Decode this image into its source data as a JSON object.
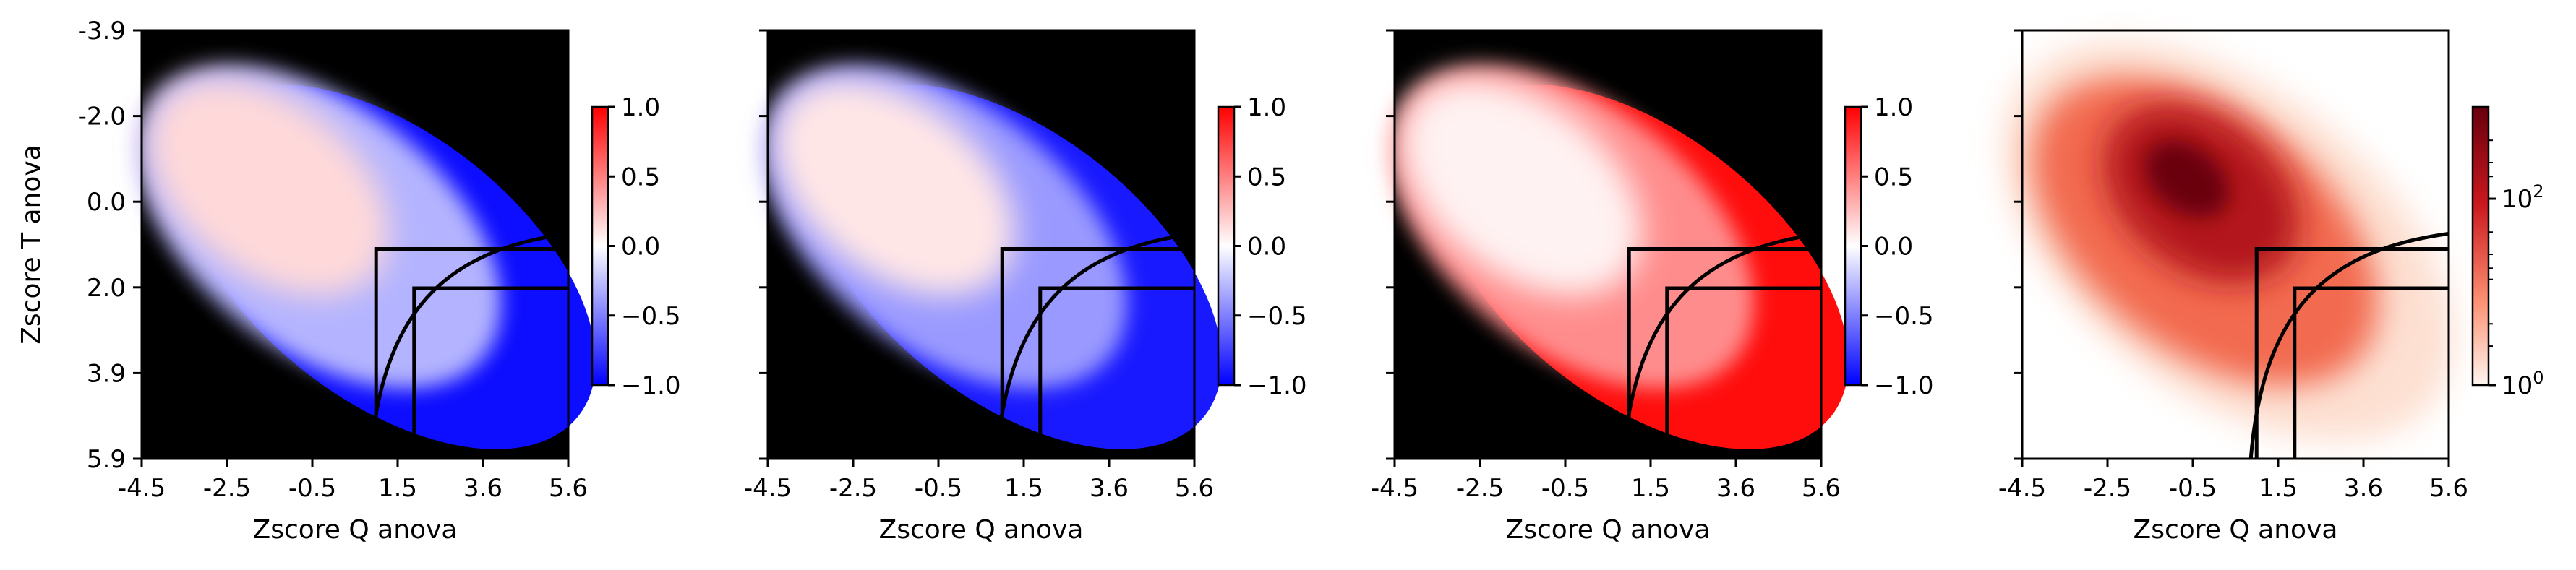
{
  "chart_data": [
    {
      "type": "heatmap",
      "xlabel": "Zscore Q anova",
      "ylabel": "Zscore T anova",
      "xtick_labels": [
        "-4.5",
        "-2.5",
        "-0.5",
        "1.5",
        "3.6",
        "5.6"
      ],
      "ytick_labels": [
        "-3.9",
        "-2.0",
        "0.0",
        "2.0",
        "3.9",
        "5.9"
      ],
      "xlim": [
        -4.5,
        5.6
      ],
      "ylim": [
        5.9,
        -3.9
      ],
      "background": "#000000",
      "colormap": "bwr",
      "colorbar": {
        "ticks": [
          "1.0",
          "0.5",
          "0.0",
          "−0.5",
          "−1.0"
        ],
        "range": [
          -1.0,
          1.0
        ]
      },
      "value_trend": {
        "upper_left": 0.15,
        "center": -0.3,
        "lower_right": -0.95
      },
      "overlay_lines": true
    },
    {
      "type": "heatmap",
      "xlabel": "Zscore Q anova",
      "ylabel": "",
      "xtick_labels": [
        "-4.5",
        "-2.5",
        "-0.5",
        "1.5",
        "3.6",
        "5.6"
      ],
      "ytick_labels": [],
      "xlim": [
        -4.5,
        5.6
      ],
      "ylim": [
        5.9,
        -3.9
      ],
      "background": "#000000",
      "colormap": "bwr",
      "colorbar": {
        "ticks": [
          "1.0",
          "0.5",
          "0.0",
          "−0.5",
          "−1.0"
        ],
        "range": [
          -1.0,
          1.0
        ]
      },
      "value_trend": {
        "upper_left": 0.1,
        "center": -0.4,
        "lower_right": -0.9
      },
      "overlay_lines": true
    },
    {
      "type": "heatmap",
      "xlabel": "Zscore Q anova",
      "ylabel": "",
      "xtick_labels": [
        "-4.5",
        "-2.5",
        "-0.5",
        "1.5",
        "3.6",
        "5.6"
      ],
      "ytick_labels": [],
      "xlim": [
        -4.5,
        5.6
      ],
      "ylim": [
        5.9,
        -3.9
      ],
      "background": "#000000",
      "colormap": "bwr",
      "colorbar": {
        "ticks": [
          "1.0",
          "0.5",
          "0.0",
          "−0.5",
          "−1.0"
        ],
        "range": [
          -1.0,
          1.0
        ]
      },
      "value_trend": {
        "upper_left": 0.05,
        "center": 0.45,
        "lower_right": 0.95
      },
      "overlay_lines": true
    },
    {
      "type": "heatmap",
      "xlabel": "Zscore Q anova",
      "ylabel": "",
      "xtick_labels": [
        "-4.5",
        "-2.5",
        "-0.5",
        "1.5",
        "3.6",
        "5.6"
      ],
      "ytick_labels": [],
      "xlim": [
        -4.5,
        5.6
      ],
      "ylim": [
        5.9,
        -3.9
      ],
      "background": "#ffffff",
      "colormap": "Reds",
      "scale": "log",
      "colorbar": {
        "ticks": [
          "10^2",
          "10^0"
        ],
        "range": [
          1,
          1000
        ]
      },
      "density_peak": {
        "x": -0.6,
        "y": -0.5
      },
      "overlay_lines": true
    }
  ],
  "overlay": {
    "color": "#000000",
    "box_outer": {
      "x0": 1.05,
      "x1": 5.6,
      "y0": 1.1,
      "y1": 3.9
    },
    "box_inner": {
      "x0": 1.95,
      "x1": 5.6,
      "y0": 2.0,
      "y1": 3.9
    },
    "curve_note": "arc from the box corner rising toward the upper right"
  }
}
